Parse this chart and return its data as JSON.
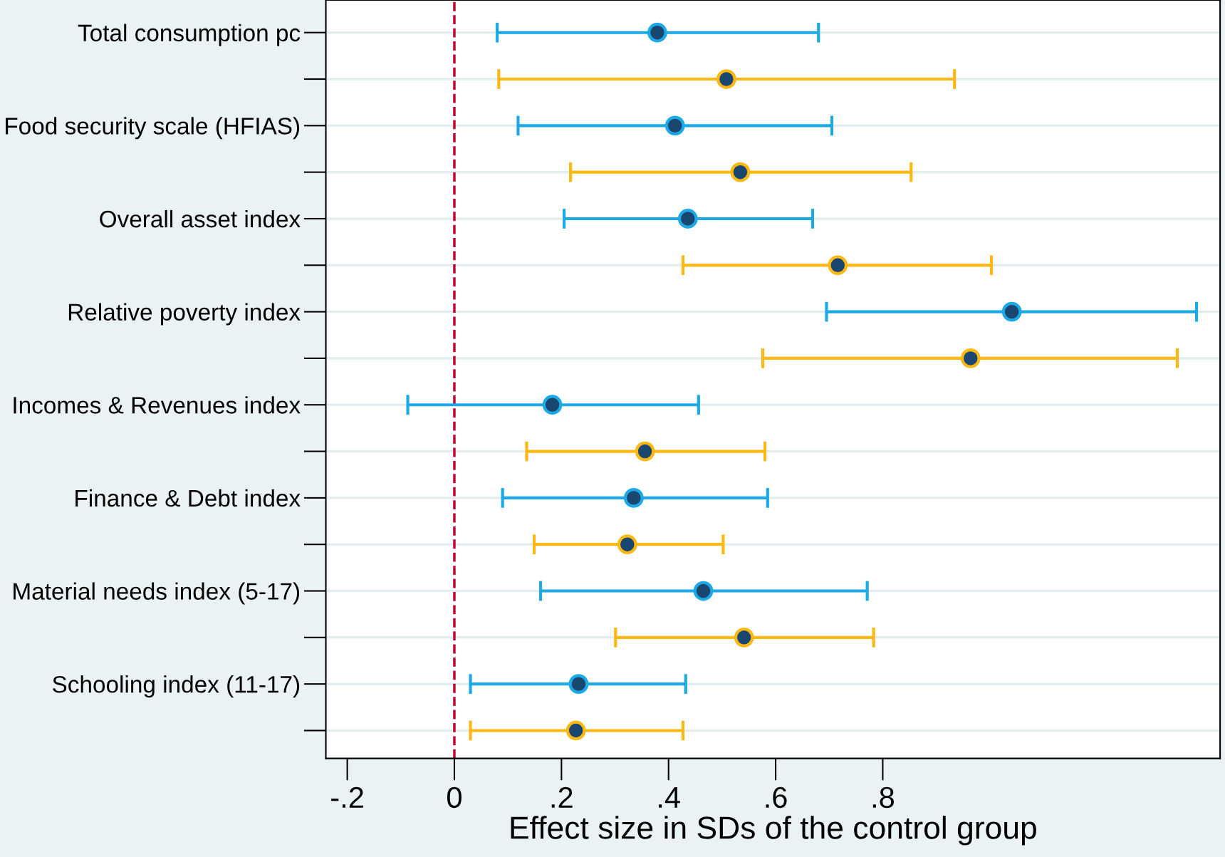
{
  "chart_data": {
    "type": "scatter",
    "orientation": "horizontal",
    "xlabel": "Effect size in SDs of the control group",
    "categories": [
      "Total consumption pc",
      null,
      "Food security scale (HFIAS)",
      null,
      "Overall asset index",
      null,
      "Relative poverty index",
      null,
      "Incomes & Revenues index",
      null,
      "Finance & Debt index",
      null,
      "Material needs index (5-17)",
      null,
      "Schooling index (11-17)",
      null
    ],
    "series": [
      {
        "color": "#1ca9e6",
        "values": [
          0.379,
          null,
          0.412,
          null,
          0.436,
          null,
          1.041,
          null,
          0.183,
          null,
          0.335,
          null,
          0.465,
          null,
          0.232,
          null
        ],
        "errors": [
          [
            0.08,
            0.68
          ],
          null,
          [
            0.119,
            0.705
          ],
          null,
          [
            0.205,
            0.669
          ],
          null,
          [
            0.695,
            1.386
          ],
          null,
          [
            -0.087,
            0.456
          ],
          null,
          [
            0.09,
            0.585
          ],
          null,
          [
            0.161,
            0.771
          ],
          null,
          [
            0.03,
            0.432
          ],
          null
        ]
      },
      {
        "color": "#fdb813",
        "values": [
          null,
          0.508,
          null,
          0.534,
          null,
          0.716,
          null,
          0.964,
          null,
          0.356,
          null,
          0.323,
          null,
          0.541,
          null,
          0.227
        ],
        "errors": [
          null,
          [
            0.083,
            0.934
          ],
          null,
          [
            0.217,
            0.853
          ],
          null,
          [
            0.427,
            1.003
          ],
          null,
          [
            0.576,
            1.35
          ],
          null,
          [
            0.135,
            0.58
          ],
          null,
          [
            0.149,
            0.502
          ],
          null,
          [
            0.301,
            0.783
          ],
          null,
          [
            0.03,
            0.427
          ]
        ]
      }
    ],
    "xlim": [
      -0.24,
      1.43
    ],
    "xticks": [
      {
        "value": -0.2,
        "label": "-.2"
      },
      0,
      {
        "value": 0.2,
        "label": ".2"
      },
      {
        "value": 0.4,
        "label": ".4"
      },
      {
        "value": 0.6,
        "label": ".6"
      },
      {
        "value": 0.8,
        "label": ".8"
      }
    ],
    "ref_lines": [
      {
        "axis": "x",
        "value": 0,
        "color": "#c10534",
        "line_style": "dashed"
      }
    ],
    "grid": "y",
    "marker": "circle",
    "legend": false
  }
}
